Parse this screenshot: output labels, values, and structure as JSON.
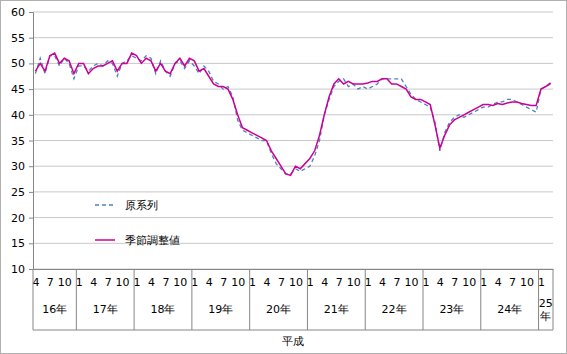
{
  "chart_data": {
    "type": "line",
    "xlabel": "平成",
    "categories": [
      "4",
      null,
      null,
      "7",
      null,
      null,
      "10",
      null,
      null,
      "1",
      null,
      null,
      "4",
      null,
      null,
      "7",
      null,
      null,
      "10",
      null,
      null,
      "1",
      null,
      null,
      "4",
      null,
      null,
      "7",
      null,
      null,
      "10",
      null,
      null,
      "1",
      null,
      null,
      "4",
      null,
      null,
      "7",
      null,
      null,
      "10",
      null,
      null,
      "1",
      null,
      null,
      "4",
      null,
      null,
      "7",
      null,
      null,
      "10",
      null,
      null,
      "1",
      null,
      null,
      "4",
      null,
      null,
      "7",
      null,
      null,
      "10",
      null,
      null,
      "1",
      null,
      null,
      "4",
      null,
      null,
      "7",
      null,
      null,
      "10",
      null,
      null,
      "1",
      null,
      null,
      "4",
      null,
      null,
      "7",
      null,
      null,
      "10",
      null,
      null,
      "1",
      null,
      null,
      "4",
      null,
      null,
      "7",
      null,
      null,
      "10",
      null,
      null,
      "1",
      null,
      null
    ],
    "x_groups": [
      {
        "label": "16年",
        "count": 9
      },
      {
        "label": "17年",
        "count": 12
      },
      {
        "label": "18年",
        "count": 12
      },
      {
        "label": "19年",
        "count": 12
      },
      {
        "label": "20年",
        "count": 12
      },
      {
        "label": "21年",
        "count": 12
      },
      {
        "label": "22年",
        "count": 12
      },
      {
        "label": "23年",
        "count": 12
      },
      {
        "label": "24年",
        "count": 12
      },
      {
        "label": "25年",
        "count": 3
      }
    ],
    "series": [
      {
        "name": "原系列",
        "color": "#4f81bd",
        "line_style": "dashed",
        "values": [
          48.0,
          51.0,
          48.0,
          51.5,
          51.5,
          49.5,
          51.0,
          50.0,
          47.0,
          49.5,
          49.5,
          48.5,
          49.5,
          50.0,
          49.5,
          50.5,
          50.0,
          47.5,
          50.0,
          50.5,
          51.5,
          51.0,
          50.5,
          51.5,
          51.0,
          48.0,
          50.5,
          48.5,
          47.5,
          50.0,
          50.5,
          49.0,
          50.5,
          49.5,
          48.0,
          49.5,
          48.5,
          46.5,
          46.0,
          45.0,
          45.5,
          43.5,
          39.0,
          37.0,
          36.5,
          36.0,
          35.5,
          35.0,
          35.0,
          32.5,
          30.5,
          29.5,
          28.5,
          28.5,
          29.5,
          29.0,
          29.5,
          30.0,
          32.0,
          35.0,
          40.0,
          43.0,
          45.5,
          46.5,
          47.0,
          45.5,
          46.0,
          45.0,
          45.5,
          45.0,
          45.5,
          46.0,
          47.0,
          47.0,
          47.0,
          47.0,
          47.0,
          45.5,
          44.0,
          43.0,
          42.5,
          42.0,
          41.5,
          38.5,
          33.0,
          36.5,
          38.5,
          39.5,
          40.0,
          39.5,
          40.0,
          40.5,
          41.0,
          41.5,
          41.5,
          42.0,
          42.5,
          42.5,
          43.0,
          43.0,
          42.5,
          42.0,
          41.5,
          41.0,
          40.5,
          45.0,
          45.5,
          46.0
        ]
      },
      {
        "name": "季節調整値",
        "color": "#cc0099",
        "line_style": "solid",
        "values": [
          48.5,
          50.0,
          48.5,
          51.5,
          52.0,
          50.0,
          51.0,
          50.5,
          48.0,
          50.0,
          50.0,
          48.0,
          49.0,
          49.5,
          49.5,
          50.0,
          50.5,
          48.5,
          50.0,
          50.0,
          52.0,
          51.5,
          50.0,
          51.0,
          50.5,
          48.5,
          50.0,
          48.5,
          48.0,
          50.0,
          51.0,
          49.5,
          51.0,
          50.5,
          48.5,
          49.0,
          47.5,
          46.0,
          45.5,
          45.5,
          45.0,
          43.0,
          40.0,
          37.5,
          37.0,
          36.5,
          36.0,
          35.5,
          35.0,
          33.0,
          31.5,
          30.0,
          28.5,
          28.2,
          30.0,
          29.5,
          30.5,
          31.5,
          33.0,
          36.0,
          40.0,
          43.5,
          46.0,
          47.0,
          46.0,
          46.5,
          46.0,
          46.0,
          46.0,
          46.2,
          46.5,
          46.5,
          47.0,
          47.0,
          46.0,
          46.0,
          45.5,
          45.0,
          43.5,
          43.0,
          43.0,
          42.5,
          42.0,
          38.0,
          33.5,
          36.0,
          38.0,
          39.0,
          39.5,
          40.0,
          40.5,
          41.0,
          41.5,
          42.0,
          42.0,
          41.8,
          42.2,
          42.0,
          42.3,
          42.5,
          42.5,
          42.2,
          42.0,
          41.8,
          41.8,
          45.0,
          45.5,
          46.2
        ]
      }
    ],
    "ylim": [
      10,
      60
    ],
    "yticks": [
      10,
      15,
      20,
      25,
      30,
      35,
      40,
      45,
      50,
      55,
      60
    ],
    "grid": true,
    "legend": "lower left"
  }
}
